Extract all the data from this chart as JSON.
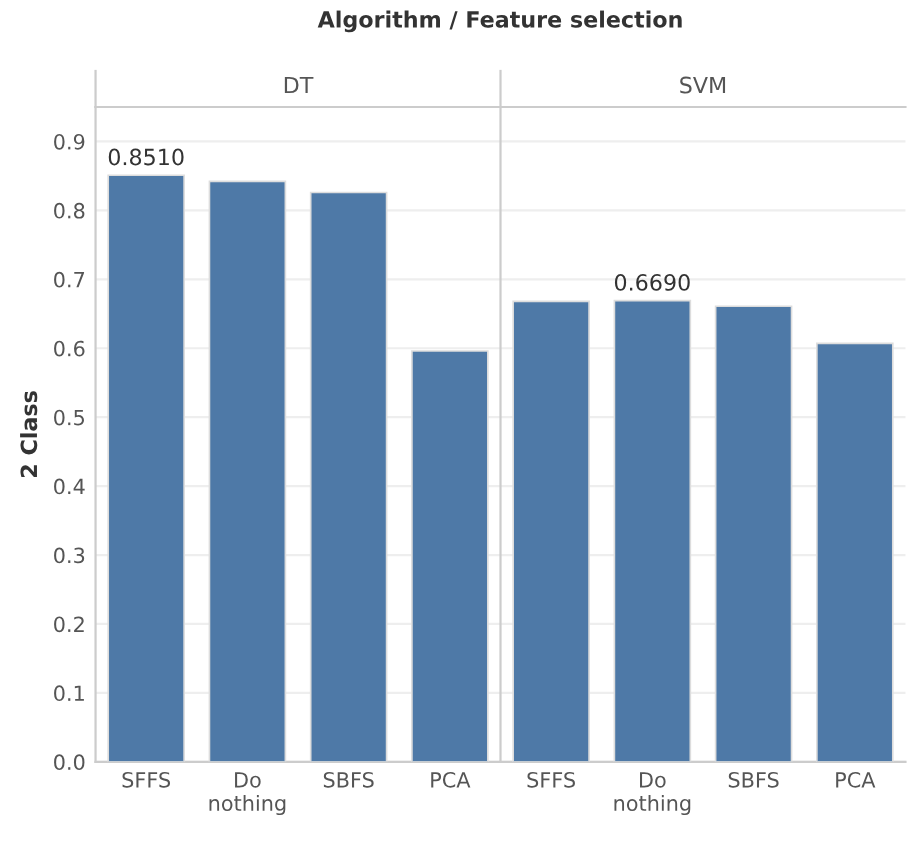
{
  "chart_data": [
    {
      "type": "bar",
      "title": "DT",
      "ylabel": "2 Class",
      "annotations": [
        "Algorithm / Feature selection"
      ],
      "categories": [
        "SFFS",
        "Do\nnothing",
        "SBFS",
        "PCA"
      ],
      "series": [
        {
          "color": "#4e79a7",
          "values": [
            0.851,
            0.842,
            0.826,
            0.596
          ],
          "value_labels": [
            "0.8510",
            null,
            null,
            null
          ]
        }
      ],
      "ylim": [
        0,
        0.95
      ],
      "yticks": [
        {
          "value": 0,
          "label": "0.0"
        },
        0.1,
        0.2,
        0.3,
        0.4,
        0.5,
        0.6,
        0.7,
        0.8,
        0.9
      ],
      "grid": "y",
      "legend": false
    },
    {
      "type": "bar",
      "title": "SVM",
      "categories": [
        "SFFS",
        "Do\nnothing",
        "SBFS",
        "PCA"
      ],
      "series": [
        {
          "color": "#4e79a7",
          "values": [
            0.668,
            0.669,
            0.661,
            0.607
          ],
          "value_labels": [
            null,
            "0.6690",
            null,
            null
          ]
        }
      ],
      "ylim": [
        0,
        0.95
      ],
      "yticks": [
        {
          "value": 0,
          "label": null
        },
        {
          "value": 0.1,
          "label": null
        },
        {
          "value": 0.2,
          "label": null
        },
        {
          "value": 0.3,
          "label": null
        },
        {
          "value": 0.4,
          "label": null
        },
        {
          "value": 0.5,
          "label": null
        },
        {
          "value": 0.6,
          "label": null
        },
        {
          "value": 0.7,
          "label": null
        },
        {
          "value": 0.8,
          "label": null
        },
        {
          "value": 0.9,
          "label": null
        }
      ],
      "grid": "y",
      "tick_labels": "x",
      "legend": false
    }
  ]
}
